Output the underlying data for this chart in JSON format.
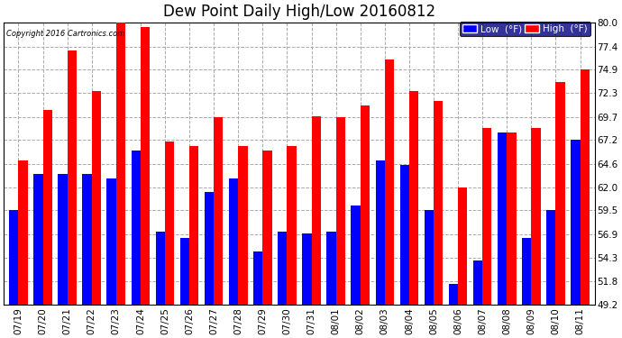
{
  "title": "Dew Point Daily High/Low 20160812",
  "copyright": "Copyright 2016 Cartronics.com",
  "dates": [
    "07/19",
    "07/20",
    "07/21",
    "07/22",
    "07/23",
    "07/24",
    "07/25",
    "07/26",
    "07/27",
    "07/28",
    "07/29",
    "07/30",
    "07/31",
    "08/01",
    "08/02",
    "08/03",
    "08/04",
    "08/05",
    "08/06",
    "08/07",
    "08/08",
    "08/09",
    "08/10",
    "08/11"
  ],
  "lows": [
    59.5,
    63.5,
    63.5,
    63.5,
    63.0,
    66.0,
    57.2,
    56.5,
    61.5,
    63.0,
    55.0,
    57.2,
    57.0,
    57.2,
    60.0,
    65.0,
    64.5,
    59.5,
    51.5,
    54.0,
    68.0,
    56.5,
    59.5,
    67.2
  ],
  "highs": [
    65.0,
    70.5,
    77.0,
    72.5,
    80.0,
    79.5,
    67.0,
    66.5,
    69.7,
    66.5,
    66.0,
    66.5,
    69.8,
    69.7,
    71.0,
    76.0,
    72.5,
    71.5,
    62.0,
    68.5,
    68.0,
    68.5,
    73.5,
    74.9
  ],
  "ylim": [
    49.2,
    80.0
  ],
  "yticks": [
    49.2,
    51.8,
    54.3,
    56.9,
    59.5,
    62.0,
    64.6,
    67.2,
    69.7,
    72.3,
    74.9,
    77.4,
    80.0
  ],
  "bar_width": 0.38,
  "low_color": "#0000FF",
  "high_color": "#FF0000",
  "bg_color": "#FFFFFF",
  "grid_color": "#AAAAAA",
  "title_fontsize": 12,
  "legend_low_label": "Low  (°F)",
  "legend_high_label": "High  (°F)"
}
